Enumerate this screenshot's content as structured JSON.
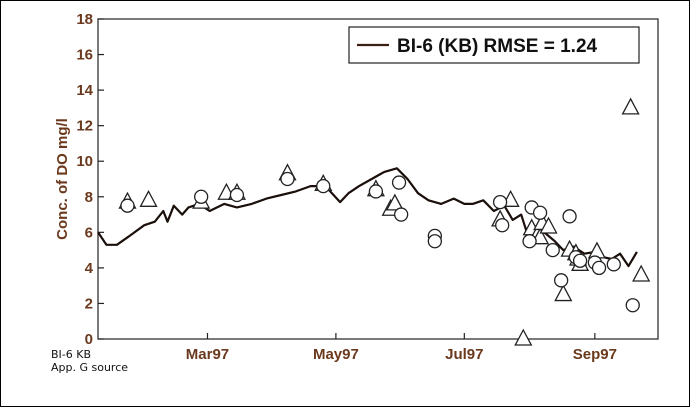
{
  "caption": {
    "line1": "BI-6 KB",
    "line2": "App. G source"
  },
  "chart_data": {
    "type": "line",
    "title": "",
    "ylabel": "Conc. of DO mg/l",
    "xlabel": "",
    "ylim": [
      0,
      18
    ],
    "xlim": [
      "1997-01-08",
      "1997-10-01"
    ],
    "yticks": [
      0,
      2,
      4,
      6,
      8,
      10,
      12,
      14,
      16,
      18
    ],
    "xticks": [
      {
        "date": "1997-03-01",
        "label": "Mar97"
      },
      {
        "date": "1997-05-01",
        "label": "May97"
      },
      {
        "date": "1997-07-01",
        "label": "Jul97"
      },
      {
        "date": "1997-09-01",
        "label": "Sep97"
      }
    ],
    "legend": {
      "label": "BI-6 (KB) RMSE = 1.24",
      "position": "top-right"
    },
    "line_color": "#1a0f0a",
    "series": [
      {
        "name": "BI-6 (KB) RMSE = 1.24",
        "type": "line",
        "x": [
          "1997-01-08",
          "1997-01-12",
          "1997-01-17",
          "1997-01-23",
          "1997-01-30",
          "1997-02-04",
          "1997-02-08",
          "1997-02-10",
          "1997-02-13",
          "1997-02-17",
          "1997-02-20",
          "1997-02-25",
          "1997-03-02",
          "1997-03-09",
          "1997-03-15",
          "1997-03-22",
          "1997-03-29",
          "1997-04-05",
          "1997-04-12",
          "1997-04-19",
          "1997-04-26",
          "1997-05-03",
          "1997-05-07",
          "1997-05-12",
          "1997-05-18",
          "1997-05-24",
          "1997-05-30",
          "1997-06-04",
          "1997-06-09",
          "1997-06-14",
          "1997-06-20",
          "1997-06-26",
          "1997-07-01",
          "1997-07-05",
          "1997-07-10",
          "1997-07-15",
          "1997-07-20",
          "1997-07-24",
          "1997-07-28",
          "1997-08-01",
          "1997-08-05",
          "1997-08-09",
          "1997-08-13",
          "1997-08-17",
          "1997-08-22",
          "1997-08-27",
          "1997-09-01",
          "1997-09-05",
          "1997-09-09",
          "1997-09-13",
          "1997-09-17",
          "1997-09-21"
        ],
        "y": [
          6.0,
          5.3,
          5.3,
          5.8,
          6.4,
          6.6,
          7.2,
          6.6,
          7.5,
          7.0,
          7.4,
          7.6,
          7.2,
          7.6,
          7.4,
          7.6,
          7.9,
          8.1,
          8.3,
          8.6,
          8.6,
          7.7,
          8.2,
          8.6,
          9.0,
          9.4,
          9.6,
          9.0,
          8.2,
          7.8,
          7.6,
          7.9,
          7.6,
          7.6,
          7.8,
          7.2,
          7.5,
          6.7,
          7.0,
          5.5,
          6.2,
          5.9,
          5.5,
          5.0,
          5.2,
          4.8,
          4.9,
          4.6,
          4.5,
          4.8,
          4.1,
          4.9
        ]
      },
      {
        "name": "",
        "type": "scatter",
        "marker": "triangle",
        "x": [
          "1997-01-22",
          "1997-02-01",
          "1997-02-26",
          "1997-03-10",
          "1997-03-15",
          "1997-04-08",
          "1997-04-25",
          "1997-05-20",
          "1997-05-27",
          "1997-05-29",
          "1997-07-18",
          "1997-07-23",
          "1997-07-29",
          "1997-08-02",
          "1997-08-05",
          "1997-08-06",
          "1997-08-07",
          "1997-08-10",
          "1997-08-17",
          "1997-08-20",
          "1997-08-23",
          "1997-08-24",
          "1997-08-25",
          "1997-09-02",
          "1997-09-18",
          "1997-09-23"
        ],
        "y": [
          7.7,
          7.8,
          7.7,
          8.2,
          8.2,
          9.3,
          8.7,
          8.4,
          7.3,
          7.6,
          6.7,
          7.8,
          0.0,
          6.2,
          5.9,
          5.7,
          6.5,
          6.3,
          2.5,
          5.0,
          4.8,
          4.5,
          4.2,
          4.9,
          13.0,
          3.6
        ]
      },
      {
        "name": "",
        "type": "scatter",
        "marker": "circle",
        "x": [
          "1997-01-22",
          "1997-02-26",
          "1997-03-15",
          "1997-04-08",
          "1997-04-25",
          "1997-05-20",
          "1997-05-31",
          "1997-06-01",
          "1997-06-17",
          "1997-06-17",
          "1997-07-18",
          "1997-07-19",
          "1997-08-01",
          "1997-08-02",
          "1997-08-06",
          "1997-08-12",
          "1997-08-16",
          "1997-08-20",
          "1997-08-23",
          "1997-08-25",
          "1997-09-01",
          "1997-09-03",
          "1997-09-10",
          "1997-09-19"
        ],
        "y": [
          7.5,
          8.0,
          8.1,
          9.0,
          8.6,
          8.3,
          8.8,
          7.0,
          5.8,
          5.5,
          7.7,
          6.4,
          5.5,
          7.4,
          7.1,
          5.0,
          3.3,
          6.9,
          4.6,
          4.4,
          4.3,
          4.0,
          4.2,
          1.9
        ]
      }
    ]
  }
}
